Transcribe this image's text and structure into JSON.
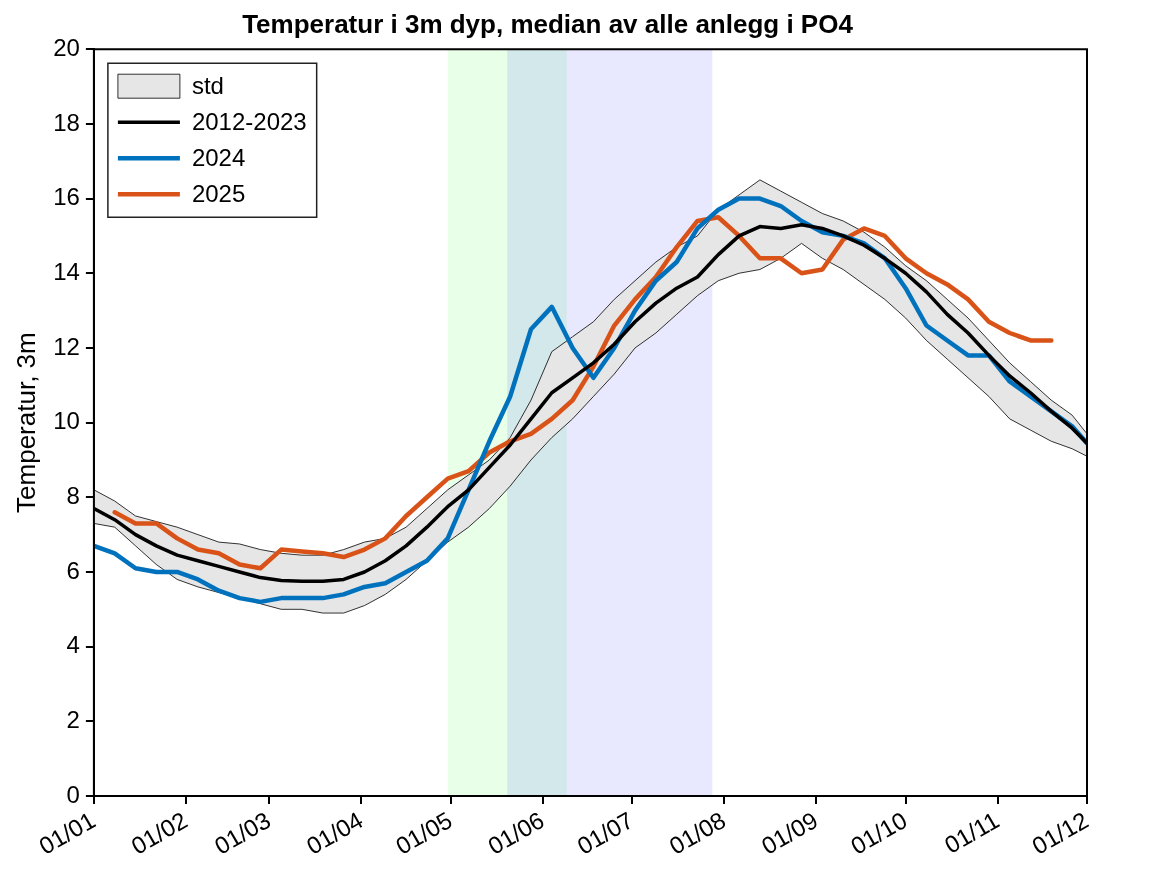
{
  "chart_data": {
    "type": "line",
    "title": "Temperatur i 3m dyp, median av alle anlegg i PO4",
    "ylabel": "Temperatur, 3m",
    "x": [
      "--01-01",
      "--01-08",
      "--01-15",
      "--01-22",
      "--01-29",
      "--02-05",
      "--02-12",
      "--02-19",
      "--02-26",
      "--03-05",
      "--03-12",
      "--03-19",
      "--03-26",
      "--04-02",
      "--04-09",
      "--04-16",
      "--04-23",
      "--04-30",
      "--05-07",
      "--05-14",
      "--05-21",
      "--05-28",
      "--06-04",
      "--06-11",
      "--06-18",
      "--06-25",
      "--07-02",
      "--07-09",
      "--07-16",
      "--07-23",
      "--07-30",
      "--08-06",
      "--08-13",
      "--08-20",
      "--08-27",
      "--09-03",
      "--09-10",
      "--09-17",
      "--09-24",
      "--10-01",
      "--10-08",
      "--10-15",
      "--10-22",
      "--10-29",
      "--11-05",
      "--11-12",
      "--11-19",
      "--11-26",
      "--12-01"
    ],
    "series": [
      {
        "name": "std",
        "type": "area",
        "color": "#e6e6e6",
        "values": [
          null,
          null,
          null,
          null,
          null,
          null,
          null,
          null,
          null,
          null,
          null,
          null,
          null,
          null,
          null,
          null,
          null,
          null,
          null,
          null,
          null,
          null,
          null,
          null,
          null,
          null,
          null,
          null,
          null,
          null,
          null,
          null,
          null,
          null,
          null,
          null,
          null,
          null,
          null,
          null,
          null,
          null,
          null,
          null,
          null,
          null,
          null,
          null,
          null
        ]
      },
      {
        "name": "2012-2023",
        "color": "#000000",
        "upper": [
          8.2,
          7.9,
          7.5,
          7.35,
          7.2,
          7.0,
          6.8,
          6.75,
          6.6,
          6.5,
          6.45,
          6.45,
          6.6,
          6.8,
          6.9,
          7.2,
          7.7,
          8.2,
          8.6,
          9.0,
          9.6,
          10.6,
          11.9,
          12.3,
          12.7,
          13.3,
          13.8,
          14.3,
          14.7,
          15.0,
          15.7,
          16.1,
          16.5,
          16.2,
          15.9,
          15.6,
          15.4,
          15.1,
          14.7,
          14.2,
          13.8,
          13.3,
          12.8,
          12.2,
          11.6,
          11.1,
          10.6,
          10.2,
          9.7
        ],
        "lower": [
          7.3,
          7.2,
          6.7,
          6.2,
          5.8,
          5.6,
          5.45,
          5.3,
          5.15,
          5.0,
          5.0,
          4.9,
          4.9,
          5.1,
          5.4,
          5.8,
          6.3,
          6.8,
          7.2,
          7.7,
          8.3,
          9.0,
          9.6,
          10.1,
          10.7,
          11.3,
          12.0,
          12.4,
          12.9,
          13.4,
          13.8,
          14.0,
          14.1,
          14.4,
          14.8,
          14.4,
          14.1,
          13.7,
          13.3,
          12.8,
          12.2,
          11.7,
          11.2,
          10.7,
          10.1,
          9.8,
          9.5,
          9.3,
          9.1
        ],
        "values": [
          7.7,
          7.4,
          7.0,
          6.7,
          6.45,
          6.3,
          6.15,
          6.0,
          5.85,
          5.77,
          5.75,
          5.75,
          5.8,
          6.0,
          6.3,
          6.7,
          7.2,
          7.75,
          8.2,
          8.8,
          9.4,
          10.1,
          10.8,
          11.2,
          11.6,
          12.1,
          12.7,
          13.2,
          13.6,
          13.9,
          14.5,
          15.0,
          15.25,
          15.2,
          15.3,
          15.2,
          15.0,
          14.75,
          14.4,
          14.0,
          13.5,
          12.9,
          12.4,
          11.8,
          11.25,
          10.8,
          10.3,
          9.85,
          9.45
        ]
      },
      {
        "name": "2024",
        "color": "#0072bd",
        "values": [
          6.7,
          6.5,
          6.1,
          6.0,
          6.0,
          5.8,
          5.5,
          5.3,
          5.2,
          5.3,
          5.3,
          5.3,
          5.4,
          5.6,
          5.7,
          6.0,
          6.3,
          6.9,
          8.2,
          9.5,
          10.7,
          12.5,
          13.1,
          12.0,
          11.2,
          12.0,
          13.0,
          13.8,
          14.3,
          15.2,
          15.7,
          16.0,
          16.0,
          15.8,
          15.4,
          15.1,
          15.0,
          14.8,
          14.4,
          13.6,
          12.6,
          12.2,
          11.8,
          11.8,
          11.1,
          10.7,
          10.3,
          9.9,
          9.45
        ]
      },
      {
        "name": "2025",
        "color": "#d95319",
        "values": [
          null,
          7.6,
          7.3,
          7.3,
          6.9,
          6.6,
          6.5,
          6.2,
          6.1,
          6.6,
          6.55,
          6.5,
          6.4,
          6.6,
          6.9,
          7.5,
          8.0,
          8.5,
          8.7,
          9.2,
          9.5,
          9.7,
          10.1,
          10.6,
          11.5,
          12.6,
          13.3,
          13.9,
          14.7,
          15.4,
          15.5,
          15.0,
          14.4,
          14.4,
          14.0,
          14.1,
          14.9,
          15.2,
          15.0,
          14.4,
          14.0,
          13.7,
          13.3,
          12.7,
          12.4,
          12.2,
          12.2,
          null,
          null
        ]
      }
    ],
    "bands": [
      {
        "axis": "x",
        "from": "--04-30",
        "to": "--06-09",
        "color": "#00ff00"
      },
      {
        "axis": "x",
        "from": "--05-20",
        "to": "--07-28",
        "color": "#0000ff"
      }
    ],
    "xlim": [
      "--01-01",
      "--12-01"
    ],
    "xticks": [
      {
        "value": "--01-01",
        "label": "01/01"
      },
      {
        "value": "--02-01",
        "label": "01/02"
      },
      {
        "value": "--03-01",
        "label": "01/03"
      },
      {
        "value": "--04-01",
        "label": "01/04"
      },
      {
        "value": "--05-01",
        "label": "01/05"
      },
      {
        "value": "--06-01",
        "label": "01/06"
      },
      {
        "value": "--07-01",
        "label": "01/07"
      },
      {
        "value": "--08-01",
        "label": "01/08"
      },
      {
        "value": "--09-01",
        "label": "01/09"
      },
      {
        "value": "--10-01",
        "label": "01/10"
      },
      {
        "value": "--11-01",
        "label": "01/11"
      },
      {
        "value": "--12-01",
        "label": "01/12"
      }
    ],
    "ylim": [
      0,
      20
    ],
    "yticks": [
      0,
      2,
      4,
      6,
      8,
      10,
      12,
      14,
      16,
      18,
      20
    ],
    "grid": false,
    "legend": "top left",
    "marker": "none",
    "line_style": "solid"
  }
}
